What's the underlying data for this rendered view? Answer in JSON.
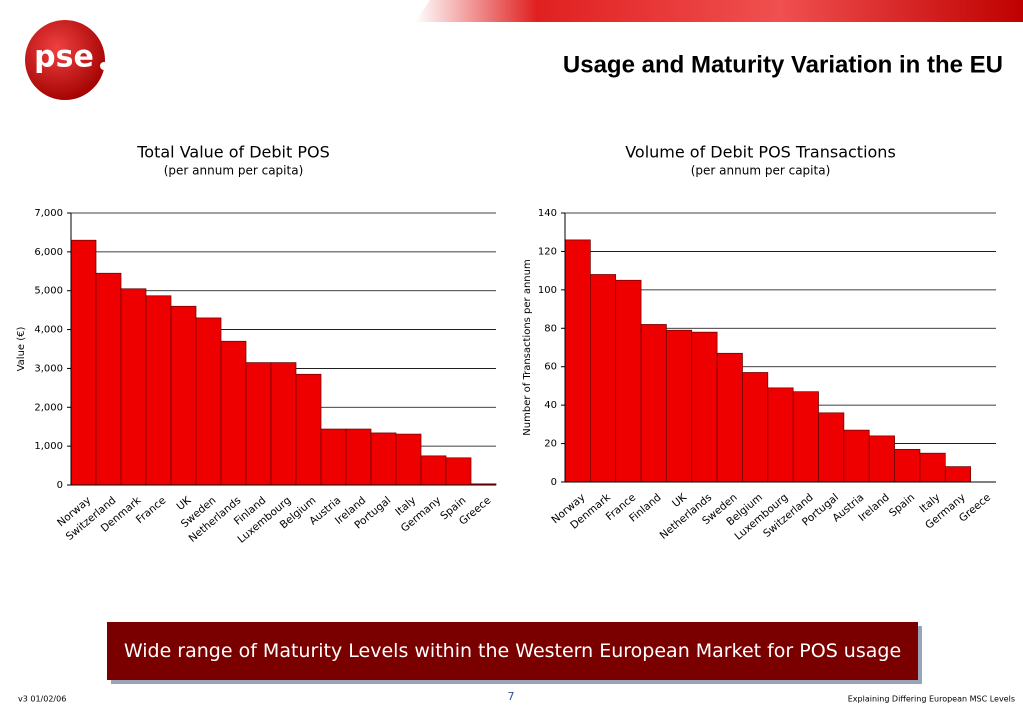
{
  "logo": "pse",
  "title": "Usage and Maturity Variation in the EU",
  "chart_data": [
    {
      "type": "bar",
      "title": "Total Value of Debit POS",
      "subtitle": "(per annum per capita)",
      "y_label": "Value (€)",
      "categories": [
        "Norway",
        "Switzerland",
        "Denmark",
        "France",
        "UK",
        "Sweden",
        "Netherlands",
        "Finland",
        "Luxembourg",
        "Belgium",
        "Austria",
        "Ireland",
        "Portugal",
        "Italy",
        "Germany",
        "Spain",
        "Greece"
      ],
      "values": [
        6300,
        5450,
        5050,
        4870,
        4600,
        4300,
        3700,
        3150,
        3150,
        2850,
        1440,
        1440,
        1340,
        1310,
        750,
        700,
        30
      ],
      "color": "#ee0000",
      "ylim": [
        0,
        7000
      ],
      "yticks": [
        0,
        {
          "value": 1000,
          "label": "1,000"
        },
        {
          "value": 2000,
          "label": "2,000"
        },
        {
          "value": 3000,
          "label": "3,000"
        },
        {
          "value": 4000,
          "label": "4,000"
        },
        {
          "value": 5000,
          "label": "5,000"
        },
        {
          "value": 6000,
          "label": "6,000"
        },
        {
          "value": 7000,
          "label": "7,000"
        }
      ],
      "grid": true
    },
    {
      "type": "bar",
      "title": "Volume of Debit POS Transactions",
      "subtitle": "(per annum per capita)",
      "y_label": "Number of Transactions per annum",
      "categories": [
        "Norway",
        "Denmark",
        "France",
        "Finland",
        "UK",
        "Netherlands",
        "Sweden",
        "Belgium",
        "Luxembourg",
        "Switzerland",
        "Portugal",
        "Austria",
        "Ireland",
        "Spain",
        "Italy",
        "Germany",
        "Greece"
      ],
      "values": [
        126,
        108,
        105,
        82,
        79,
        78,
        67,
        57,
        49,
        47,
        36,
        27,
        24,
        17,
        15,
        8,
        0
      ],
      "color": "#ee0000",
      "ylim": [
        0,
        140
      ],
      "yticks": [
        0,
        20,
        40,
        60,
        80,
        100,
        120,
        140
      ],
      "grid": true
    }
  ],
  "callout": "Wide range of Maturity Levels within the Western European Market for POS usage",
  "footer": {
    "version": "v3  01/02/06",
    "page": "7",
    "note": "Explaining Differing European MSC Levels"
  }
}
